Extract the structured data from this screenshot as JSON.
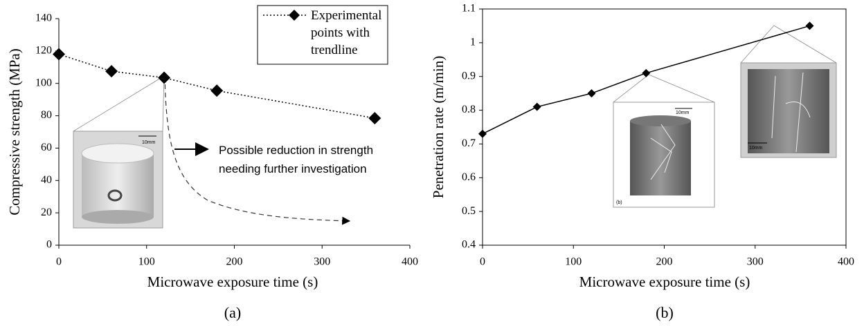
{
  "chart_data": [
    {
      "type": "line",
      "caption": "(a)",
      "x_label": "Microwave exposure time (s)",
      "y_label": "Compressive strength (MPa)",
      "x": [
        0,
        60,
        120,
        180,
        360
      ],
      "series": [
        {
          "name": "Experimental points with trendline",
          "color": "#000000",
          "line_style": "dotted",
          "values": [
            118,
            107.5,
            103.5,
            95.5,
            78.5
          ]
        }
      ],
      "xlim": [
        0,
        400
      ],
      "xticks": [
        0,
        100,
        200,
        300,
        400
      ],
      "ylim": [
        0,
        140
      ],
      "yticks": [
        0,
        20,
        40,
        60,
        80,
        100,
        120,
        140
      ],
      "frame": false,
      "annotation": "Possible reduction in strength needing further investigation",
      "image_labels": [
        "10mm"
      ]
    },
    {
      "type": "line",
      "caption": "(b)",
      "x_label": "Microwave exposure time (s)",
      "y_label": "Penetration rate (m/min)",
      "x": [
        0,
        60,
        120,
        180,
        360
      ],
      "series": [
        {
          "color": "#000000",
          "line_style": "solid",
          "values": [
            0.73,
            0.81,
            0.85,
            0.91,
            1.05
          ]
        }
      ],
      "xlim": [
        0,
        400
      ],
      "xticks": [
        0,
        100,
        200,
        300,
        400
      ],
      "ylim": [
        0.4,
        1.1
      ],
      "yticks": [
        0.4,
        0.5,
        0.6,
        0.7,
        0.8,
        0.9,
        1,
        1.1
      ],
      "frame": true,
      "image_labels": [
        "10mm",
        "(b)",
        "10mm"
      ]
    }
  ]
}
